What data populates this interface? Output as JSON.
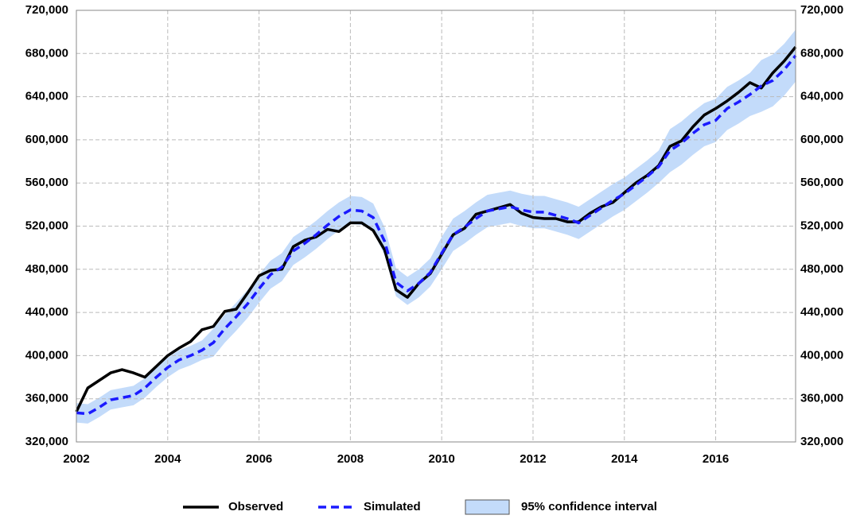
{
  "chart_data": {
    "type": "line",
    "x": [
      2002,
      2002.25,
      2002.5,
      2002.75,
      2003,
      2003.25,
      2003.5,
      2003.75,
      2004,
      2004.25,
      2004.5,
      2004.75,
      2005,
      2005.25,
      2005.5,
      2005.75,
      2006,
      2006.25,
      2006.5,
      2006.75,
      2007,
      2007.25,
      2007.5,
      2007.75,
      2008,
      2008.25,
      2008.5,
      2008.75,
      2009,
      2009.25,
      2009.5,
      2009.75,
      2010,
      2010.25,
      2010.5,
      2010.75,
      2011,
      2011.25,
      2011.5,
      2011.75,
      2012,
      2012.25,
      2012.5,
      2012.75,
      2013,
      2013.25,
      2013.5,
      2013.75,
      2014,
      2014.25,
      2014.5,
      2014.75,
      2015,
      2015.25,
      2015.5,
      2015.75,
      2016,
      2016.25,
      2016.5,
      2016.75,
      2017,
      2017.25,
      2017.5,
      2017.75
    ],
    "series": [
      {
        "name": "Observed",
        "color": "#000000",
        "values": [
          348000,
          370000,
          377000,
          384000,
          387000,
          384000,
          380000,
          390000,
          400000,
          407000,
          413000,
          424000,
          427000,
          441000,
          443000,
          458000,
          474000,
          479000,
          480000,
          501000,
          507000,
          510000,
          517000,
          515000,
          523000,
          523000,
          516000,
          498000,
          461000,
          454000,
          467000,
          476000,
          494000,
          512000,
          518000,
          531000,
          534000,
          537000,
          540000,
          532000,
          528000,
          527000,
          527000,
          524000,
          524000,
          532000,
          538000,
          542000,
          551000,
          560000,
          567000,
          576000,
          594000,
          599000,
          612000,
          623000,
          629000,
          636000,
          644000,
          653000,
          648000,
          662000,
          673000,
          686000
        ]
      },
      {
        "name": "Simulated",
        "color": "#1a1aff",
        "values": [
          347000,
          346000,
          352000,
          359000,
          361000,
          363000,
          370000,
          380000,
          389000,
          396000,
          400000,
          405000,
          412000,
          425000,
          436000,
          448000,
          462000,
          475000,
          482000,
          497000,
          504000,
          512000,
          521000,
          529000,
          535000,
          534000,
          528000,
          506000,
          468000,
          460000,
          467000,
          477000,
          495000,
          512000,
          519000,
          527000,
          534000,
          536000,
          538000,
          535000,
          533000,
          533000,
          530000,
          527000,
          523000,
          530000,
          537000,
          544000,
          550000,
          558000,
          566000,
          575000,
          590000,
          597000,
          606000,
          614000,
          618000,
          629000,
          635000,
          642000,
          650000,
          655000,
          665000,
          678000
        ]
      },
      {
        "name": "95% confidence interval",
        "color": "#c3dbfa",
        "lower": [
          338000,
          337000,
          343000,
          350000,
          352000,
          354000,
          361000,
          371000,
          380000,
          387000,
          391000,
          396000,
          399000,
          412000,
          423000,
          435000,
          449000,
          462000,
          469000,
          484000,
          491000,
          499000,
          508000,
          516000,
          522000,
          521000,
          515000,
          493000,
          455000,
          447000,
          454000,
          464000,
          480000,
          497000,
          504000,
          512000,
          519000,
          521000,
          523000,
          520000,
          518000,
          518000,
          515000,
          512000,
          508000,
          515000,
          522000,
          529000,
          535000,
          543000,
          551000,
          560000,
          570000,
          577000,
          586000,
          594000,
          598000,
          609000,
          615000,
          622000,
          626000,
          631000,
          641000,
          654000
        ],
        "upper": [
          356000,
          355000,
          361000,
          368000,
          370000,
          372000,
          379000,
          389000,
          398000,
          405000,
          409000,
          414000,
          425000,
          438000,
          449000,
          461000,
          475000,
          488000,
          495000,
          510000,
          517000,
          525000,
          534000,
          542000,
          548000,
          547000,
          541000,
          519000,
          481000,
          473000,
          480000,
          490000,
          510000,
          527000,
          534000,
          542000,
          549000,
          551000,
          553000,
          550000,
          548000,
          548000,
          545000,
          542000,
          538000,
          545000,
          552000,
          559000,
          565000,
          573000,
          581000,
          590000,
          610000,
          617000,
          626000,
          634000,
          638000,
          649000,
          655000,
          662000,
          674000,
          679000,
          689000,
          702000
        ]
      }
    ],
    "xlim": [
      2002,
      2017.75
    ],
    "xticks": [
      2002,
      2004,
      2006,
      2008,
      2010,
      2012,
      2014,
      2016
    ],
    "ylim": [
      320000,
      720000
    ],
    "yticks": [
      {
        "value": 320000,
        "label": "320,000"
      },
      {
        "value": 360000,
        "label": "360,000"
      },
      {
        "value": 400000,
        "label": "400,000"
      },
      {
        "value": 440000,
        "label": "440,000"
      },
      {
        "value": 480000,
        "label": "480,000"
      },
      {
        "value": 520000,
        "label": "520,000"
      },
      {
        "value": 560000,
        "label": "560,000"
      },
      {
        "value": 600000,
        "label": "600,000"
      },
      {
        "value": 640000,
        "label": "640,000"
      },
      {
        "value": 680000,
        "label": "680,000"
      },
      {
        "value": 720000,
        "label": "720,000"
      }
    ],
    "grid": true,
    "legend": "bottom"
  }
}
